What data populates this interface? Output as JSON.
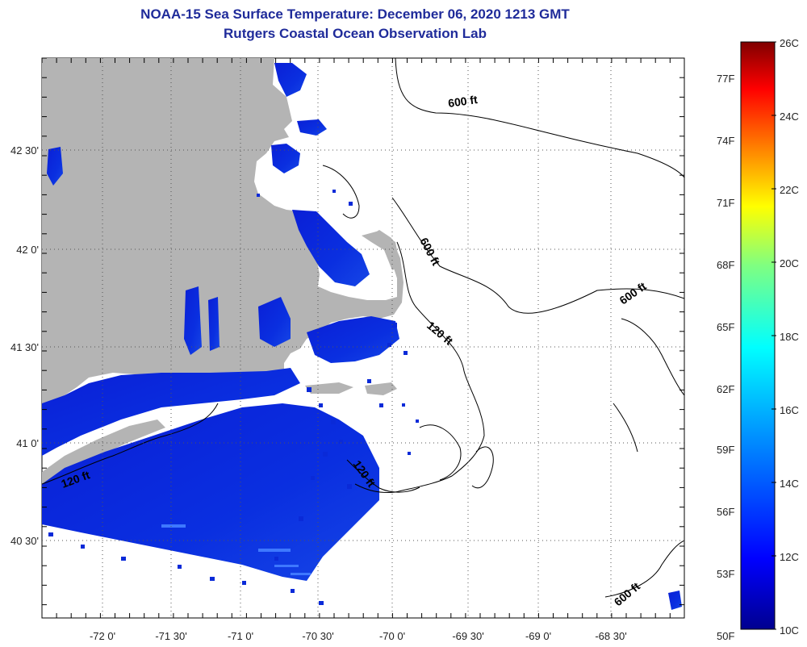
{
  "header": {
    "title_line1": "NOAA-15 Sea Surface Temperature:  December 06, 2020 1213 GMT",
    "title_line2": "Rutgers Coastal Ocean Observation Lab"
  },
  "map": {
    "x_tick_labels": [
      "-72 0'",
      "-71 30'",
      "-71 0'",
      "-70 30'",
      "-70 0'",
      "-69 30'",
      "-69 0'",
      "-68 30'"
    ],
    "y_tick_labels": [
      "42 30'",
      "42 0'",
      "41 30'",
      "41 0'",
      "40 30'"
    ],
    "contour_labels": [
      "600 ft",
      "600 ft",
      "600 ft",
      "120 ft",
      "120 ft",
      "120 ft",
      "600 ft"
    ],
    "land_color": "#b4b4b4",
    "water_color": "#ffffff"
  },
  "colorbar": {
    "celsius_labels": [
      "26C",
      "24C",
      "22C",
      "20C",
      "18C",
      "16C",
      "14C",
      "12C",
      "10C"
    ],
    "fahrenheit_labels": [
      "77F",
      "74F",
      "71F",
      "68F",
      "65F",
      "62F",
      "59F",
      "56F",
      "53F",
      "50F"
    ],
    "colors": [
      "#00008f",
      "#0000ff",
      "#0080ff",
      "#00ffff",
      "#80ff80",
      "#ffff00",
      "#ff8000",
      "#ff0000",
      "#800000"
    ]
  }
}
